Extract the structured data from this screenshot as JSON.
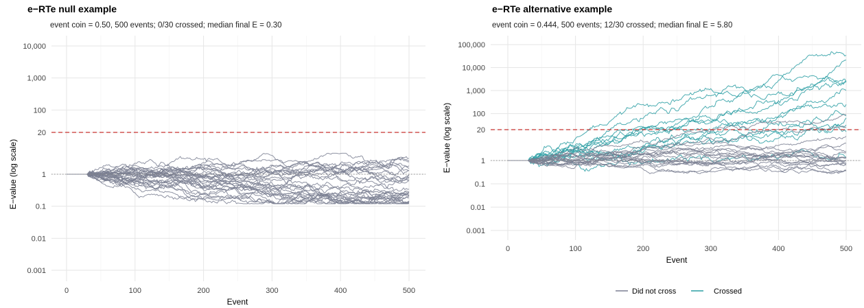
{
  "chart_data": [
    {
      "type": "line",
      "title": "e−RTe null example",
      "subtitle": "event coin = 0.50, 500 events; 0/30 crossed; median final E = 0.30",
      "xlabel": "Event",
      "ylabel": "E−value (log scale)",
      "x_ticks": [
        "0",
        "100",
        "200",
        "300",
        "400",
        "500"
      ],
      "y_ticks": [
        "0.001",
        "0.01",
        "0.1",
        "1",
        "20",
        "100",
        "1,000",
        "10,000"
      ],
      "y_scale": "log",
      "xlim": [
        -20,
        525
      ],
      "ylim": [
        0.0005,
        20000
      ],
      "threshold": 20,
      "reference": 1,
      "n_paths": 30,
      "n_crossed": 0,
      "median_final": 0.3,
      "final_range": [
        0.2,
        2.6
      ],
      "path_min": 0.12,
      "path_max": 4.5,
      "grid": true,
      "colors": {
        "did_not_cross": "#7a7f92",
        "crossed": "#2a9da3",
        "threshold": "#c8312f",
        "reference": "#888888"
      }
    },
    {
      "type": "line",
      "title": "e−RTe alternative example",
      "subtitle": "event coin = 0.444, 500 events; 12/30 crossed; median final E = 5.80",
      "xlabel": "Event",
      "ylabel": "E−value (log scale)",
      "x_ticks": [
        "0",
        "100",
        "200",
        "300",
        "400",
        "500"
      ],
      "y_ticks": [
        "0.001",
        "0.01",
        "0.1",
        "1",
        "20",
        "100",
        "1,000",
        "10,000",
        "100,000"
      ],
      "y_scale": "log",
      "xlim": [
        -20,
        525
      ],
      "ylim": [
        0.0005,
        200000
      ],
      "threshold": 20,
      "reference": 1,
      "n_paths": 30,
      "n_crossed": 12,
      "median_final": 5.8,
      "final_range": [
        0.2,
        100000
      ],
      "grid": true,
      "legend": {
        "position": "bottom",
        "entries": [
          {
            "label": "Did not cross",
            "color": "#7a7f92"
          },
          {
            "label": "Crossed",
            "color": "#2a9da3"
          }
        ]
      }
    }
  ]
}
